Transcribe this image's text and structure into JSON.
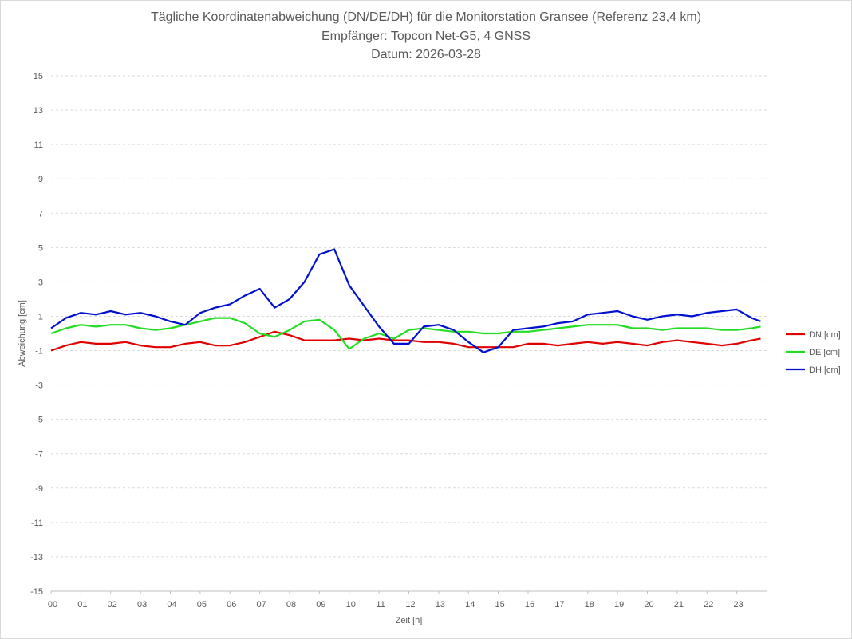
{
  "chart_data": {
    "type": "line",
    "title": [
      "Tägliche Koordinatenabweichung (DN/DE/DH) für die Monitorstation Gransee (Referenz 23,4 km)",
      "Empfänger: Topcon Net-G5, 4 GNSS",
      "Datum: 2026-03-28"
    ],
    "xlabel": "Zeit [h]",
    "ylabel": "Abweichung [cm]",
    "xlim": [
      0,
      24
    ],
    "ylim": [
      -15,
      15
    ],
    "x_ticks": [
      "00",
      "01",
      "02",
      "03",
      "04",
      "05",
      "06",
      "07",
      "08",
      "09",
      "10",
      "11",
      "12",
      "13",
      "14",
      "15",
      "16",
      "17",
      "18",
      "19",
      "20",
      "21",
      "22",
      "23"
    ],
    "y_ticks": [
      15,
      13,
      11,
      9,
      7,
      5,
      3,
      1,
      -1,
      -3,
      -5,
      -7,
      -9,
      -11,
      -13,
      -15
    ],
    "grid": "horizontal dashed",
    "legend_position": "right",
    "series": [
      {
        "name": "DN [cm]",
        "color": "#e00000",
        "x": [
          0,
          0.5,
          1,
          1.5,
          2,
          2.5,
          3,
          3.5,
          4,
          4.5,
          5,
          5.5,
          6,
          6.5,
          7,
          7.5,
          8,
          8.5,
          9,
          9.5,
          10,
          10.5,
          11,
          11.5,
          12,
          12.5,
          13,
          13.5,
          14,
          14.5,
          15,
          15.5,
          16,
          16.5,
          17,
          17.5,
          18,
          18.5,
          19,
          19.5,
          20,
          20.5,
          21,
          21.5,
          22,
          22.5,
          23,
          23.5,
          23.8
        ],
        "y": [
          -1.0,
          -0.7,
          -0.5,
          -0.6,
          -0.6,
          -0.5,
          -0.7,
          -0.8,
          -0.8,
          -0.6,
          -0.5,
          -0.7,
          -0.7,
          -0.5,
          -0.2,
          0.1,
          -0.1,
          -0.4,
          -0.4,
          -0.4,
          -0.3,
          -0.4,
          -0.3,
          -0.4,
          -0.4,
          -0.5,
          -0.5,
          -0.6,
          -0.8,
          -0.8,
          -0.8,
          -0.8,
          -0.6,
          -0.6,
          -0.7,
          -0.6,
          -0.5,
          -0.6,
          -0.5,
          -0.6,
          -0.7,
          -0.5,
          -0.4,
          -0.5,
          -0.6,
          -0.7,
          -0.6,
          -0.4,
          -0.3
        ]
      },
      {
        "name": "DE [cm]",
        "color": "#22dd22",
        "x": [
          0,
          0.5,
          1,
          1.5,
          2,
          2.5,
          3,
          3.5,
          4,
          4.5,
          5,
          5.5,
          6,
          6.5,
          7,
          7.5,
          8,
          8.5,
          9,
          9.5,
          10,
          10.5,
          11,
          11.5,
          12,
          12.5,
          13,
          13.5,
          14,
          14.5,
          15,
          15.5,
          16,
          16.5,
          17,
          17.5,
          18,
          18.5,
          19,
          19.5,
          20,
          20.5,
          21,
          21.5,
          22,
          22.5,
          23,
          23.5,
          23.8
        ],
        "y": [
          0.0,
          0.3,
          0.5,
          0.4,
          0.5,
          0.5,
          0.3,
          0.2,
          0.3,
          0.5,
          0.7,
          0.9,
          0.9,
          0.6,
          0.0,
          -0.2,
          0.2,
          0.7,
          0.8,
          0.2,
          -0.9,
          -0.3,
          0.0,
          -0.3,
          0.2,
          0.3,
          0.2,
          0.1,
          0.1,
          0.0,
          0.0,
          0.1,
          0.1,
          0.2,
          0.3,
          0.4,
          0.5,
          0.5,
          0.5,
          0.3,
          0.3,
          0.2,
          0.3,
          0.3,
          0.3,
          0.2,
          0.2,
          0.3,
          0.4
        ]
      },
      {
        "name": "DH [cm]",
        "color": "#0010d0",
        "x": [
          0,
          0.5,
          1,
          1.5,
          2,
          2.5,
          3,
          3.5,
          4,
          4.5,
          5,
          5.5,
          6,
          6.5,
          7,
          7.5,
          8,
          8.5,
          9,
          9.5,
          10,
          10.5,
          11,
          11.5,
          12,
          12.5,
          13,
          13.5,
          14,
          14.5,
          15,
          15.5,
          16,
          16.5,
          17,
          17.5,
          18,
          18.5,
          19,
          19.5,
          20,
          20.5,
          21,
          21.5,
          22,
          22.5,
          23,
          23.5,
          23.8
        ],
        "y": [
          0.3,
          0.9,
          1.2,
          1.1,
          1.3,
          1.1,
          1.2,
          1.0,
          0.7,
          0.5,
          1.2,
          1.5,
          1.7,
          2.2,
          2.6,
          1.5,
          2.0,
          3.0,
          4.6,
          4.9,
          2.8,
          1.6,
          0.4,
          -0.6,
          -0.6,
          0.4,
          0.5,
          0.2,
          -0.5,
          -1.1,
          -0.8,
          0.2,
          0.3,
          0.4,
          0.6,
          0.7,
          1.1,
          1.2,
          1.3,
          1.0,
          0.8,
          1.0,
          1.1,
          1.0,
          1.2,
          1.3,
          1.4,
          0.9,
          0.7
        ]
      }
    ]
  }
}
